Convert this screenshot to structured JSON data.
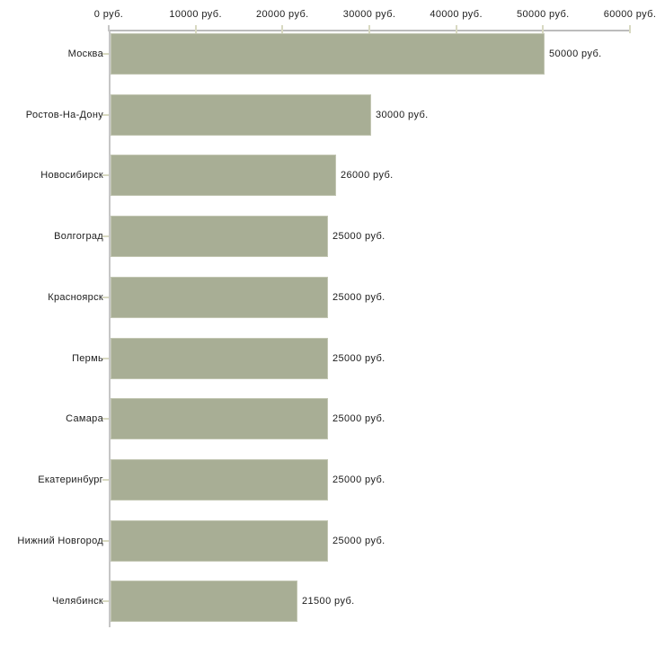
{
  "chart_data": {
    "type": "bar",
    "orientation": "horizontal",
    "title": "",
    "categories": [
      "Москва",
      "Ростов-На-Дону",
      "Новосибирск",
      "Волгоград",
      "Красноярск",
      "Пермь",
      "Самара",
      "Екатеринбург",
      "Нижний Новгород",
      "Челябинск"
    ],
    "values": [
      50000,
      30000,
      26000,
      25000,
      25000,
      25000,
      25000,
      25000,
      25000,
      21500
    ],
    "value_labels": [
      "50000 руб.",
      "30000 руб.",
      "26000 руб.",
      "25000 руб.",
      "25000 руб.",
      "25000 руб.",
      "25000 руб.",
      "25000 руб.",
      "25000 руб.",
      "21500 руб."
    ],
    "unit": "руб.",
    "xlim": [
      0,
      60000
    ],
    "x_ticks": [
      0,
      10000,
      20000,
      30000,
      40000,
      50000,
      60000
    ],
    "x_tick_labels": [
      "0 руб.",
      "10000 руб.",
      "20000 руб.",
      "30000 руб.",
      "40000 руб.",
      "50000 руб.",
      "60000 руб."
    ],
    "ylabel": "",
    "xlabel": "",
    "grid": false,
    "legend": null,
    "axis_position": "top-left"
  },
  "colors": {
    "background": "#ffffff",
    "bar_fill": "#a8ae95",
    "bar_border": "#c2c6b2",
    "axis_line": "#c0c0c0",
    "tick_mark": "#d8d9c1",
    "text": "#1c1c1c"
  }
}
